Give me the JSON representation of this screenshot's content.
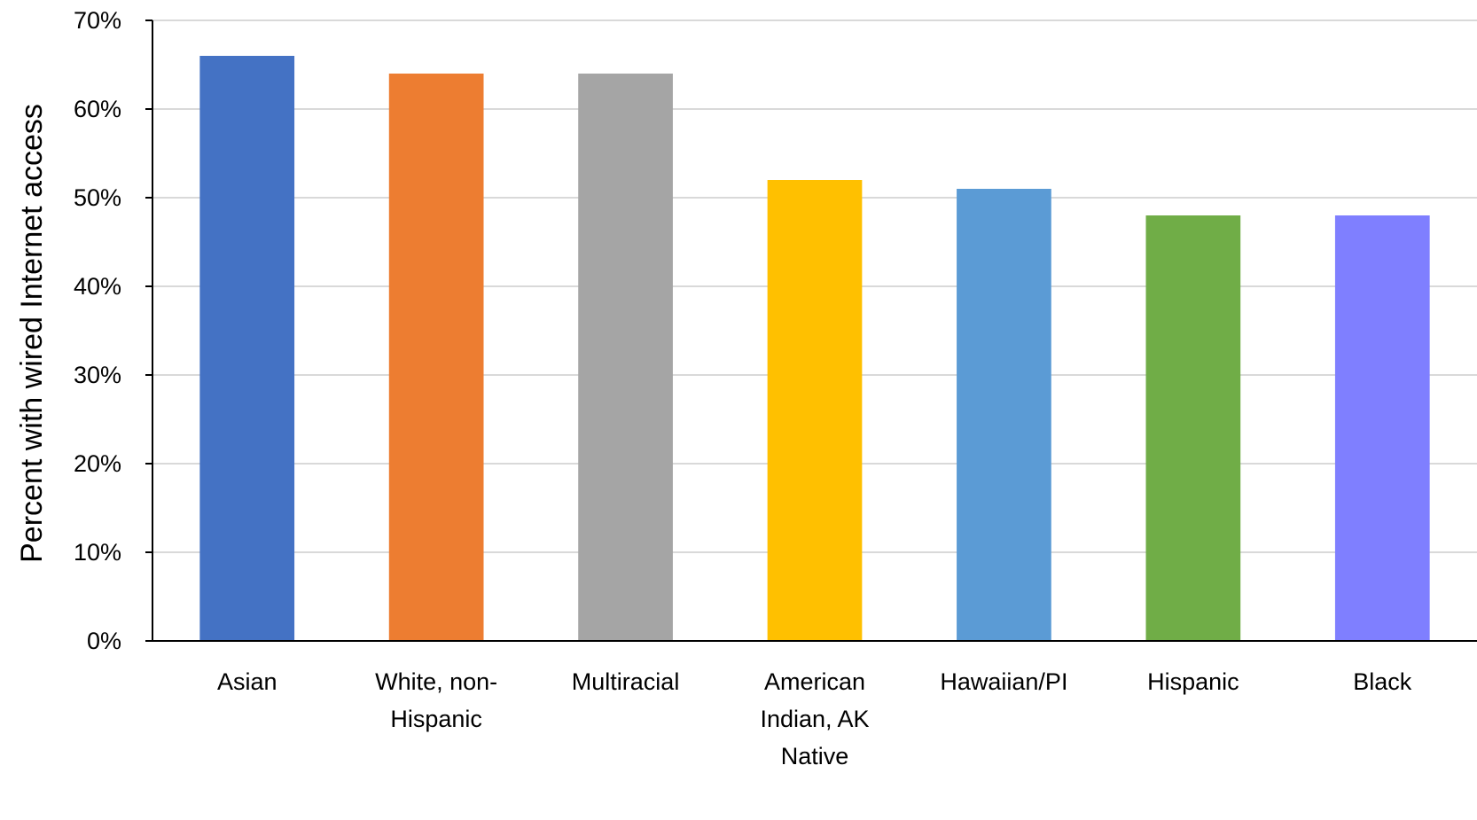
{
  "chart_data": {
    "type": "bar",
    "title": "",
    "xlabel": "",
    "ylabel": "Percent with wired Internet access",
    "ylim": [
      0,
      70
    ],
    "y_tick_step": 10,
    "y_tick_format": "percent",
    "grid": true,
    "legend": "none",
    "categories": [
      "Asian",
      "White, non-Hispanic",
      "Multiracial",
      "American Indian, AK Native",
      "Hawaiian/PI",
      "Hispanic",
      "Black"
    ],
    "category_label_lines": [
      [
        "Asian"
      ],
      [
        "White, non-",
        "Hispanic"
      ],
      [
        "Multiracial"
      ],
      [
        "American",
        "Indian, AK",
        "Native"
      ],
      [
        "Hawaiian/PI"
      ],
      [
        "Hispanic"
      ],
      [
        "Black"
      ]
    ],
    "values": [
      66,
      64,
      64,
      52,
      51,
      48,
      48
    ],
    "colors": [
      "#4472c4",
      "#ed7d31",
      "#a5a5a5",
      "#ffc000",
      "#5b9bd5",
      "#70ad47",
      "#7f7fff"
    ],
    "colors_meaning": "per-bar fill colors"
  }
}
